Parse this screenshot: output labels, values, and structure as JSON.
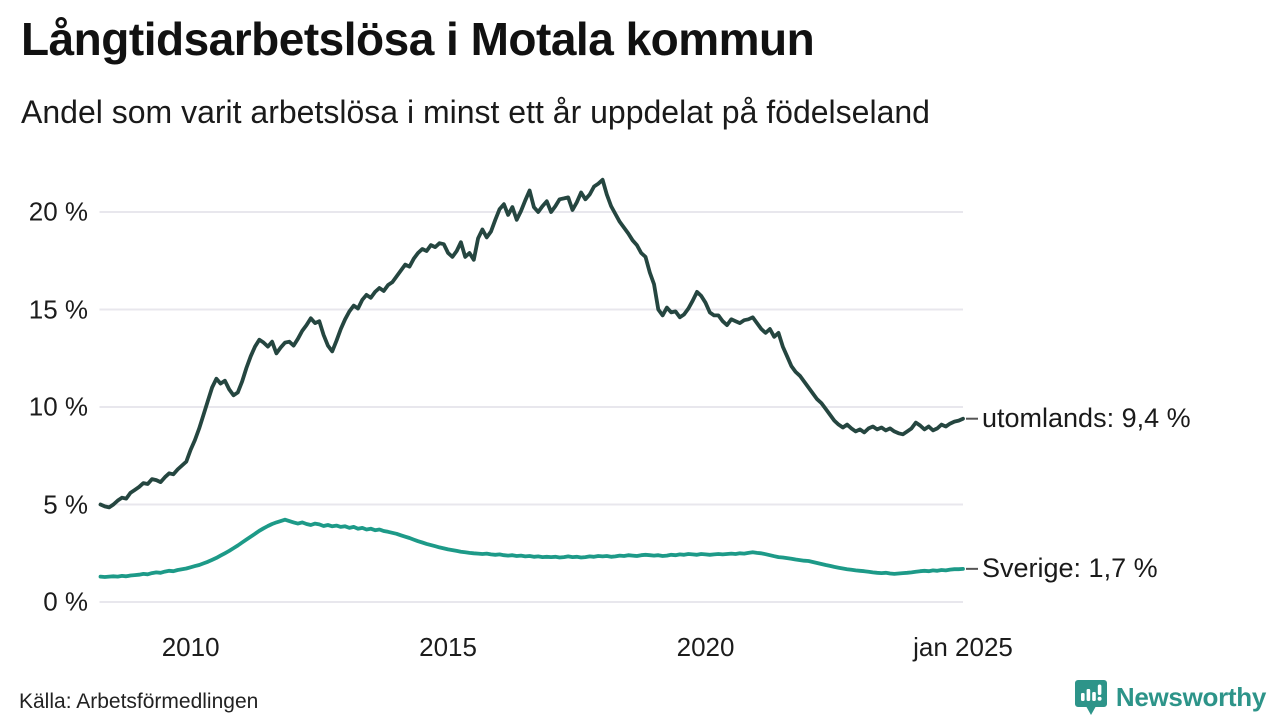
{
  "header": {
    "title": "Långtidsarbetslösa i Motala kommun",
    "subtitle": "Andel som varit arbetslösa i minst ett år uppdelat på födelseland"
  },
  "footer": {
    "source": "Källa: Arbetsförmedlingen",
    "brand": "Newsworthy",
    "brand_color": "#2d9489"
  },
  "chart_data": {
    "type": "line",
    "title": "Långtidsarbetslösa i Motala kommun",
    "subtitle": "Andel som varit arbetslösa i minst ett år uppdelat på födelseland",
    "unit": "%",
    "frequency": "monthly",
    "x_start": "2008-04",
    "x_end": "2025-01",
    "ylim": [
      0,
      22.5
    ],
    "grid": "horizontal",
    "gridline_color": "#e8e7ed",
    "y_ticks": [
      {
        "value": 0,
        "label": "0 %"
      },
      {
        "value": 5,
        "label": "5 %"
      },
      {
        "value": 10,
        "label": "10 %"
      },
      {
        "value": 15,
        "label": "15 %"
      },
      {
        "value": 20,
        "label": "20 %"
      }
    ],
    "x_ticks": [
      {
        "label": "2010",
        "month_index": 21
      },
      {
        "label": "2015",
        "month_index": 81
      },
      {
        "label": "2020",
        "month_index": 141
      },
      {
        "label": "jan 2025",
        "month_index": 201
      }
    ],
    "series": [
      {
        "name": "utomlands",
        "end_label": "utomlands: 9,4 %",
        "end_value": 9.4,
        "color": "#254640",
        "values": [
          5.0,
          4.9,
          4.85,
          5.0,
          5.2,
          5.35,
          5.3,
          5.6,
          5.75,
          5.9,
          6.1,
          6.05,
          6.3,
          6.25,
          6.15,
          6.4,
          6.6,
          6.55,
          6.8,
          7.0,
          7.2,
          7.8,
          8.3,
          8.9,
          9.6,
          10.3,
          11.0,
          11.45,
          11.2,
          11.35,
          10.9,
          10.6,
          10.75,
          11.3,
          12.0,
          12.6,
          13.1,
          13.45,
          13.3,
          13.1,
          13.35,
          12.75,
          13.05,
          13.3,
          13.35,
          13.15,
          13.5,
          13.9,
          14.2,
          14.55,
          14.3,
          14.4,
          13.7,
          13.15,
          12.85,
          13.4,
          14.0,
          14.5,
          14.9,
          15.2,
          15.05,
          15.5,
          15.75,
          15.6,
          15.9,
          16.1,
          15.95,
          16.25,
          16.4,
          16.7,
          17.0,
          17.3,
          17.2,
          17.6,
          17.9,
          18.1,
          18.0,
          18.3,
          18.2,
          18.4,
          18.35,
          17.9,
          17.7,
          18.0,
          18.45,
          17.7,
          17.9,
          17.55,
          18.65,
          19.1,
          18.7,
          19.0,
          19.6,
          20.15,
          20.4,
          19.85,
          20.25,
          19.6,
          20.05,
          20.6,
          21.1,
          20.25,
          20.0,
          20.3,
          20.55,
          20.0,
          20.3,
          20.65,
          20.7,
          20.75,
          20.1,
          20.5,
          21.0,
          20.65,
          20.9,
          21.3,
          21.45,
          21.65,
          20.9,
          20.3,
          19.9,
          19.5,
          19.2,
          18.9,
          18.55,
          18.3,
          17.9,
          17.7,
          16.9,
          16.3,
          15.0,
          14.7,
          15.1,
          14.85,
          14.9,
          14.6,
          14.75,
          15.05,
          15.45,
          15.9,
          15.7,
          15.35,
          14.85,
          14.7,
          14.7,
          14.4,
          14.2,
          14.5,
          14.4,
          14.3,
          14.45,
          14.5,
          14.6,
          14.3,
          14.0,
          13.8,
          14.0,
          13.6,
          13.8,
          13.1,
          12.6,
          12.1,
          11.8,
          11.6,
          11.3,
          11.0,
          10.7,
          10.4,
          10.2,
          9.9,
          9.6,
          9.3,
          9.1,
          8.95,
          9.1,
          8.9,
          8.75,
          8.85,
          8.7,
          8.9,
          9.0,
          8.85,
          8.95,
          8.8,
          8.9,
          8.75,
          8.65,
          8.6,
          8.75,
          8.9,
          9.2,
          9.05,
          8.85,
          9.0,
          8.8,
          8.9,
          9.1,
          9.0,
          9.15,
          9.25,
          9.3,
          9.4
        ]
      },
      {
        "name": "Sverige",
        "end_label": "Sverige: 1,7 %",
        "end_value": 1.7,
        "color": "#1d9a88",
        "values": [
          1.3,
          1.28,
          1.3,
          1.32,
          1.3,
          1.34,
          1.32,
          1.36,
          1.38,
          1.4,
          1.44,
          1.42,
          1.48,
          1.52,
          1.5,
          1.56,
          1.6,
          1.58,
          1.64,
          1.68,
          1.72,
          1.78,
          1.84,
          1.9,
          1.98,
          2.06,
          2.16,
          2.26,
          2.38,
          2.5,
          2.62,
          2.76,
          2.9,
          3.05,
          3.2,
          3.35,
          3.5,
          3.65,
          3.78,
          3.9,
          4.0,
          4.08,
          4.15,
          4.22,
          4.15,
          4.08,
          4.02,
          4.08,
          4.0,
          3.95,
          4.02,
          3.98,
          3.9,
          3.95,
          3.88,
          3.92,
          3.85,
          3.88,
          3.8,
          3.85,
          3.76,
          3.8,
          3.72,
          3.76,
          3.68,
          3.72,
          3.64,
          3.6,
          3.55,
          3.5,
          3.42,
          3.35,
          3.28,
          3.2,
          3.12,
          3.05,
          2.98,
          2.92,
          2.86,
          2.8,
          2.75,
          2.7,
          2.66,
          2.62,
          2.58,
          2.55,
          2.52,
          2.5,
          2.48,
          2.46,
          2.48,
          2.44,
          2.42,
          2.44,
          2.4,
          2.38,
          2.4,
          2.36,
          2.38,
          2.34,
          2.36,
          2.32,
          2.34,
          2.3,
          2.32,
          2.3,
          2.32,
          2.28,
          2.3,
          2.34,
          2.3,
          2.32,
          2.28,
          2.3,
          2.34,
          2.32,
          2.36,
          2.34,
          2.36,
          2.32,
          2.34,
          2.38,
          2.36,
          2.4,
          2.38,
          2.36,
          2.4,
          2.42,
          2.4,
          2.38,
          2.4,
          2.36,
          2.38,
          2.42,
          2.4,
          2.44,
          2.42,
          2.46,
          2.44,
          2.42,
          2.46,
          2.44,
          2.42,
          2.44,
          2.46,
          2.44,
          2.46,
          2.48,
          2.46,
          2.5,
          2.48,
          2.52,
          2.55,
          2.52,
          2.5,
          2.45,
          2.4,
          2.35,
          2.3,
          2.28,
          2.25,
          2.22,
          2.18,
          2.15,
          2.12,
          2.1,
          2.05,
          2.0,
          1.95,
          1.9,
          1.85,
          1.8,
          1.76,
          1.72,
          1.68,
          1.65,
          1.62,
          1.6,
          1.58,
          1.55,
          1.52,
          1.5,
          1.48,
          1.5,
          1.46,
          1.44,
          1.46,
          1.48,
          1.5,
          1.52,
          1.55,
          1.58,
          1.6,
          1.58,
          1.62,
          1.6,
          1.64,
          1.62,
          1.66,
          1.68,
          1.68,
          1.7
        ]
      }
    ]
  }
}
